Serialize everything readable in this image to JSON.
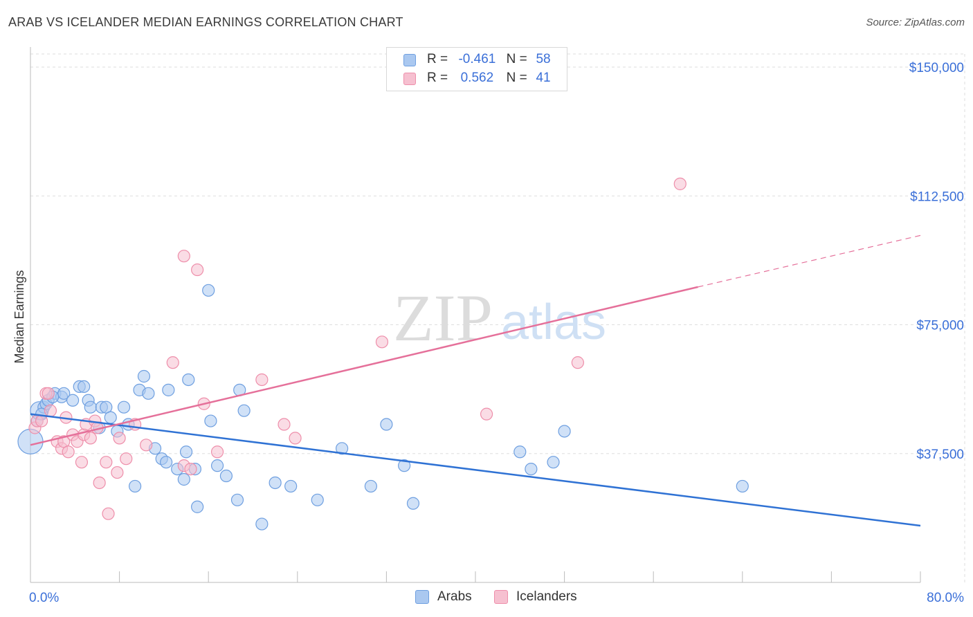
{
  "title": "ARAB VS ICELANDER MEDIAN EARNINGS CORRELATION CHART",
  "source": "Source: ZipAtlas.com",
  "watermark": {
    "zip": "ZIP",
    "atlas": "atlas"
  },
  "legend_top": {
    "arabs": {
      "r_label": "R =",
      "r_value": "-0.461",
      "n_label": "N =",
      "n_value": "58"
    },
    "icelanders": {
      "r_label": "R =",
      "r_value": "0.562",
      "n_label": "N =",
      "n_value": "41"
    }
  },
  "legend_bottom": {
    "arabs": "Arabs",
    "icelanders": "Icelanders"
  },
  "colors": {
    "arabs_fill": "#aac8f0",
    "arabs_stroke": "#6e9fe0",
    "arabs_line": "#2f72d4",
    "icelanders_fill": "#f6c0d0",
    "icelanders_stroke": "#ee8eaa",
    "icelanders_line": "#e5709a",
    "tick_label": "#3a6fd8",
    "grid": "#dedede"
  },
  "chart_data": {
    "type": "scatter",
    "title": "ARAB VS ICELANDER MEDIAN EARNINGS CORRELATION CHART",
    "xlabel": "",
    "ylabel": "Median Earnings",
    "xlim": [
      0,
      80
    ],
    "ylim": [
      0,
      155000
    ],
    "x_tick_labels": [
      {
        "value": 0,
        "label": "0.0%"
      },
      {
        "value": 80,
        "label": "80.0%"
      }
    ],
    "y_ticks": [
      {
        "value": 37500,
        "label": "$37,500"
      },
      {
        "value": 75000,
        "label": "$75,000"
      },
      {
        "value": 112500,
        "label": "$112,500"
      },
      {
        "value": 150000,
        "label": "$150,000"
      }
    ],
    "series": [
      {
        "name": "Arabs",
        "r": -0.461,
        "n": 58,
        "trend": {
          "x0": 0,
          "y0": 49000,
          "x1": 80,
          "y1": 16500
        },
        "points": [
          [
            0.0,
            41000
          ],
          [
            0.6,
            47000
          ],
          [
            0.8,
            50000
          ],
          [
            1.2,
            51000
          ],
          [
            1.4,
            52000
          ],
          [
            1.6,
            53000
          ],
          [
            2.2,
            55000
          ],
          [
            2.8,
            54000
          ],
          [
            3.0,
            55000
          ],
          [
            3.8,
            53000
          ],
          [
            4.4,
            57000
          ],
          [
            4.8,
            57000
          ],
          [
            5.2,
            53000
          ],
          [
            5.4,
            51000
          ],
          [
            6.2,
            45000
          ],
          [
            6.4,
            51000
          ],
          [
            6.8,
            51000
          ],
          [
            7.2,
            48000
          ],
          [
            7.8,
            44000
          ],
          [
            8.4,
            51000
          ],
          [
            8.8,
            46000
          ],
          [
            9.4,
            28000
          ],
          [
            9.8,
            56000
          ],
          [
            10.2,
            60000
          ],
          [
            10.6,
            55000
          ],
          [
            11.2,
            39000
          ],
          [
            11.8,
            36000
          ],
          [
            12.2,
            35000
          ],
          [
            12.4,
            56000
          ],
          [
            13.2,
            33000
          ],
          [
            13.8,
            30000
          ],
          [
            14.0,
            38000
          ],
          [
            14.2,
            59000
          ],
          [
            14.8,
            33000
          ],
          [
            15.0,
            22000
          ],
          [
            16.0,
            85000
          ],
          [
            16.2,
            47000
          ],
          [
            16.8,
            34000
          ],
          [
            17.6,
            31000
          ],
          [
            18.6,
            24000
          ],
          [
            18.8,
            56000
          ],
          [
            19.2,
            50000
          ],
          [
            20.8,
            17000
          ],
          [
            22.0,
            29000
          ],
          [
            23.4,
            28000
          ],
          [
            25.8,
            24000
          ],
          [
            28.0,
            39000
          ],
          [
            30.6,
            28000
          ],
          [
            32.0,
            46000
          ],
          [
            33.6,
            34000
          ],
          [
            34.4,
            23000
          ],
          [
            44.0,
            38000
          ],
          [
            45.0,
            33000
          ],
          [
            47.0,
            35000
          ],
          [
            48.0,
            44000
          ],
          [
            64.0,
            28000
          ],
          [
            1.0,
            49000
          ],
          [
            2.0,
            54000
          ]
        ]
      },
      {
        "name": "Icelanders",
        "r": 0.562,
        "n": 41,
        "trend": {
          "x0": 0,
          "y0": 40000,
          "x1": 60,
          "y1": 86000,
          "dash_to_x": 80,
          "dash_to_y": 101000
        },
        "points": [
          [
            0.4,
            45000
          ],
          [
            0.6,
            47000
          ],
          [
            1.0,
            47000
          ],
          [
            1.4,
            55000
          ],
          [
            1.8,
            50000
          ],
          [
            2.4,
            41000
          ],
          [
            2.8,
            39000
          ],
          [
            3.0,
            41000
          ],
          [
            3.2,
            48000
          ],
          [
            3.4,
            38000
          ],
          [
            3.8,
            43000
          ],
          [
            4.2,
            41000
          ],
          [
            4.6,
            35000
          ],
          [
            4.8,
            43000
          ],
          [
            5.0,
            46000
          ],
          [
            5.4,
            42000
          ],
          [
            5.8,
            47000
          ],
          [
            6.0,
            45000
          ],
          [
            6.2,
            29000
          ],
          [
            6.8,
            35000
          ],
          [
            7.0,
            20000
          ],
          [
            7.8,
            32000
          ],
          [
            8.0,
            42000
          ],
          [
            8.6,
            36000
          ],
          [
            9.4,
            46000
          ],
          [
            10.4,
            40000
          ],
          [
            12.8,
            64000
          ],
          [
            13.8,
            34000
          ],
          [
            13.8,
            95000
          ],
          [
            14.4,
            33000
          ],
          [
            15.0,
            91000
          ],
          [
            15.6,
            52000
          ],
          [
            16.8,
            38000
          ],
          [
            20.8,
            59000
          ],
          [
            22.8,
            46000
          ],
          [
            23.8,
            42000
          ],
          [
            31.6,
            70000
          ],
          [
            41.0,
            49000
          ],
          [
            49.2,
            64000
          ],
          [
            58.4,
            116000
          ],
          [
            1.6,
            55000
          ]
        ]
      }
    ]
  }
}
